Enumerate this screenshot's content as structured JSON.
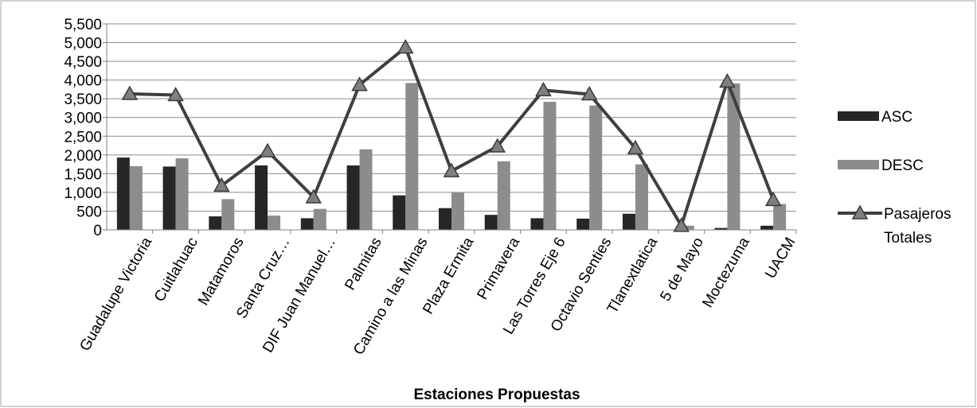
{
  "chart_data": {
    "type": "bar",
    "xlabel": "Estaciones Propuestas",
    "ylabel": "",
    "ylim": [
      0,
      5500
    ],
    "ytick_step": 500,
    "ytick_labels": [
      "0",
      "500",
      "1,000",
      "1,500",
      "2,000",
      "2,500",
      "3,000",
      "3,500",
      "4,000",
      "4,500",
      "5,000",
      "5,500"
    ],
    "grid": true,
    "legend_position": "right",
    "categories": [
      "Guadalupe Victoria",
      "Cuitlahuac",
      "Matamoros",
      "Santa Cruz…",
      "DIF Juan Manuel…",
      "Palmitas",
      "Camino a las Minas",
      "Plaza Ermita",
      "Primavera",
      "Las Torres Eje 6",
      "Octavio Senties",
      "Tlanextlatica",
      "5 de Mayo",
      "Moctezuma",
      "UACM"
    ],
    "series": [
      {
        "name": "ASC",
        "kind": "bar",
        "color": "#262626",
        "values": [
          1930,
          1690,
          360,
          1720,
          310,
          1720,
          920,
          580,
          400,
          310,
          300,
          430,
          0,
          50,
          110
        ]
      },
      {
        "name": "DESC",
        "kind": "bar",
        "color": "#8c8c8c",
        "values": [
          1700,
          1910,
          820,
          380,
          560,
          2150,
          3920,
          990,
          1830,
          3420,
          3320,
          1750,
          110,
          3910,
          690
        ]
      },
      {
        "name": "Pasajeros Totales",
        "kind": "line",
        "color": "#3f3f3f",
        "marker": "triangle",
        "values": [
          3630,
          3600,
          1180,
          2100,
          870,
          3870,
          4870,
          1570,
          2230,
          3730,
          3620,
          2180,
          110,
          3960,
          800
        ]
      }
    ]
  }
}
